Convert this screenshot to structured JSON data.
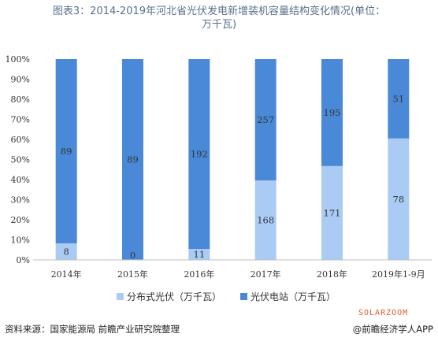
{
  "title_line1": "图表3：2014-2019年河北省光伏发电新增装机容量结构变化情况(单位：",
  "title_line2": "万千瓦)",
  "chart_data": {
    "type": "bar",
    "stacked": true,
    "normalized": true,
    "categories": [
      "2014年",
      "2015年",
      "2016年",
      "2017年",
      "2018年",
      "2019年1-9月"
    ],
    "series": [
      {
        "name": "分布式光伏（万千瓦）",
        "color": "#a9cbf4",
        "values": [
          8,
          0,
          11,
          168,
          171,
          78
        ]
      },
      {
        "name": "光伏电站（万千瓦）",
        "color": "#4a89d8",
        "values": [
          89,
          89,
          192,
          257,
          195,
          51
        ]
      }
    ],
    "yticks": [
      "0%",
      "10%",
      "20%",
      "30%",
      "40%",
      "50%",
      "60%",
      "70%",
      "80%",
      "90%",
      "100%"
    ],
    "ylim": [
      0,
      100
    ],
    "legend_position": "bottom",
    "grid": false
  },
  "footer_source": "资料来源：国家能源局 前瞻产业研究院整理",
  "footer_brand": "@前瞻经济学人APP",
  "brand_watermark": "SOLARZOOM"
}
